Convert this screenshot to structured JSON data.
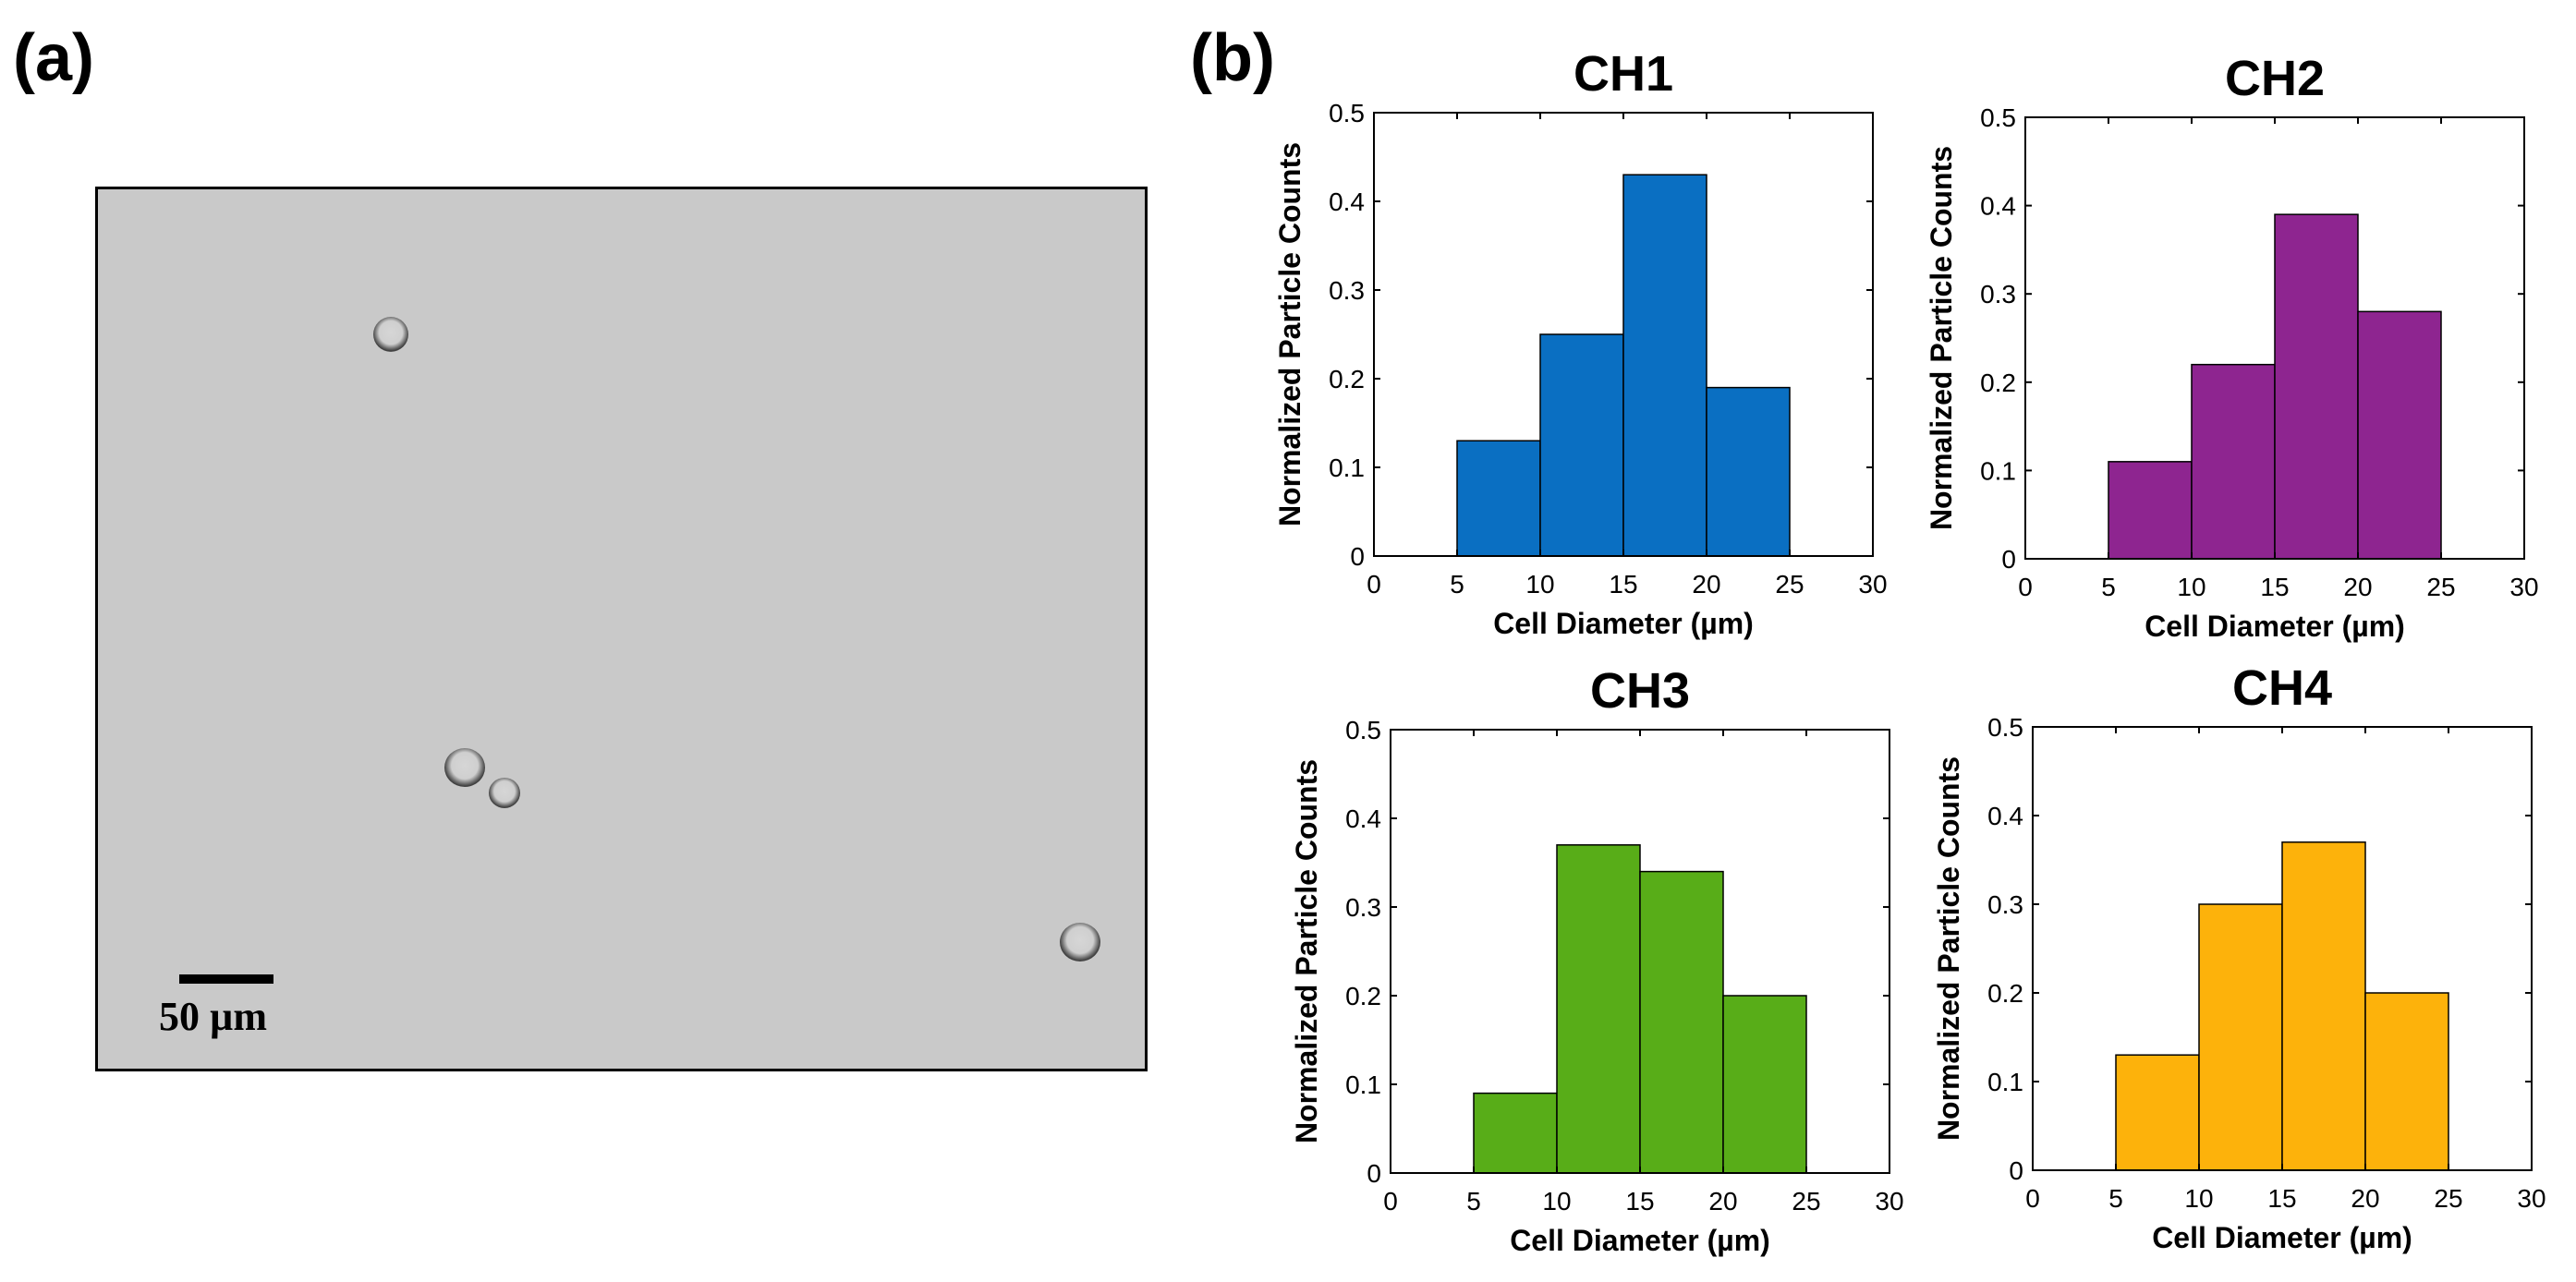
{
  "panels": {
    "a_label": "(a)",
    "b_label": "(b)"
  },
  "micrograph": {
    "scale_label": "50 µm"
  },
  "colors": {
    "ch1": "#0a6fc2",
    "ch2": "#8e2590",
    "ch3": "#58ad18",
    "ch4": "#fdb20b"
  },
  "chart_data": [
    {
      "type": "bar",
      "title": "CH1",
      "bin_edges": [
        5,
        10,
        15,
        20,
        25
      ],
      "values": [
        0.13,
        0.25,
        0.43,
        0.19
      ],
      "xlabel": "Cell Diameter (µm)",
      "ylabel": "Normalized Particle Counts",
      "xlim": [
        0,
        30
      ],
      "ylim": [
        0,
        0.5
      ],
      "xticks": [
        "0",
        "5",
        "10",
        "15",
        "20",
        "25",
        "30"
      ],
      "yticks": [
        "0",
        "0.1",
        "0.2",
        "0.3",
        "0.4",
        "0.5"
      ],
      "color": "#0a6fc2"
    },
    {
      "type": "bar",
      "title": "CH2",
      "bin_edges": [
        5,
        10,
        15,
        20,
        25
      ],
      "values": [
        0.11,
        0.22,
        0.39,
        0.28
      ],
      "xlabel": "Cell Diameter (µm)",
      "ylabel": "Normalized Particle Counts",
      "xlim": [
        0,
        30
      ],
      "ylim": [
        0,
        0.5
      ],
      "xticks": [
        "0",
        "5",
        "10",
        "15",
        "20",
        "25",
        "30"
      ],
      "yticks": [
        "0",
        "0.1",
        "0.2",
        "0.3",
        "0.4",
        "0.5"
      ],
      "color": "#8e2590"
    },
    {
      "type": "bar",
      "title": "CH3",
      "bin_edges": [
        5,
        10,
        15,
        20,
        25
      ],
      "values": [
        0.09,
        0.37,
        0.34,
        0.2
      ],
      "xlabel": "Cell Diameter (µm)",
      "ylabel": "Normalized Particle Counts",
      "xlim": [
        0,
        30
      ],
      "ylim": [
        0,
        0.5
      ],
      "xticks": [
        "0",
        "5",
        "10",
        "15",
        "20",
        "25",
        "30"
      ],
      "yticks": [
        "0",
        "0.1",
        "0.2",
        "0.3",
        "0.4",
        "0.5"
      ],
      "color": "#58ad18"
    },
    {
      "type": "bar",
      "title": "CH4",
      "bin_edges": [
        5,
        10,
        15,
        20,
        25
      ],
      "values": [
        0.13,
        0.3,
        0.37,
        0.2
      ],
      "xlabel": "Cell Diameter (µm)",
      "ylabel": "Normalized Particle Counts",
      "xlim": [
        0,
        30
      ],
      "ylim": [
        0,
        0.5
      ],
      "xticks": [
        "0",
        "5",
        "10",
        "15",
        "20",
        "25",
        "30"
      ],
      "yticks": [
        "0",
        "0.1",
        "0.2",
        "0.3",
        "0.4",
        "0.5"
      ],
      "color": "#fdb20b"
    }
  ]
}
